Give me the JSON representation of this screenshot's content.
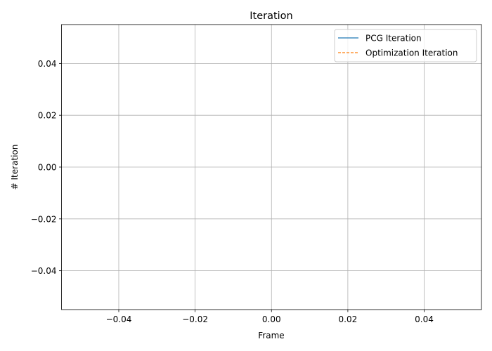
{
  "chart_data": {
    "type": "line",
    "title": "Iteration",
    "xlabel": "Frame",
    "ylabel": "# Iteration",
    "xlim": [
      -0.055,
      0.055
    ],
    "ylim": [
      -0.055,
      0.055
    ],
    "x_ticks": [
      -0.04,
      -0.02,
      0.0,
      0.02,
      0.04
    ],
    "y_ticks": [
      -0.04,
      -0.02,
      0.0,
      0.02,
      0.04
    ],
    "x_tick_labels": [
      "−0.04",
      "−0.02",
      "0.00",
      "0.02",
      "0.04"
    ],
    "y_tick_labels": [
      "−0.04",
      "−0.02",
      "0.00",
      "0.02",
      "0.04"
    ],
    "grid": true,
    "legend_position": "top-right",
    "series": [
      {
        "name": "PCG Iteration",
        "color": "#1f77b4",
        "style": "solid",
        "x": [],
        "y": []
      },
      {
        "name": "Optimization Iteration",
        "color": "#ff7f0e",
        "style": "dashed",
        "x": [],
        "y": []
      }
    ]
  }
}
